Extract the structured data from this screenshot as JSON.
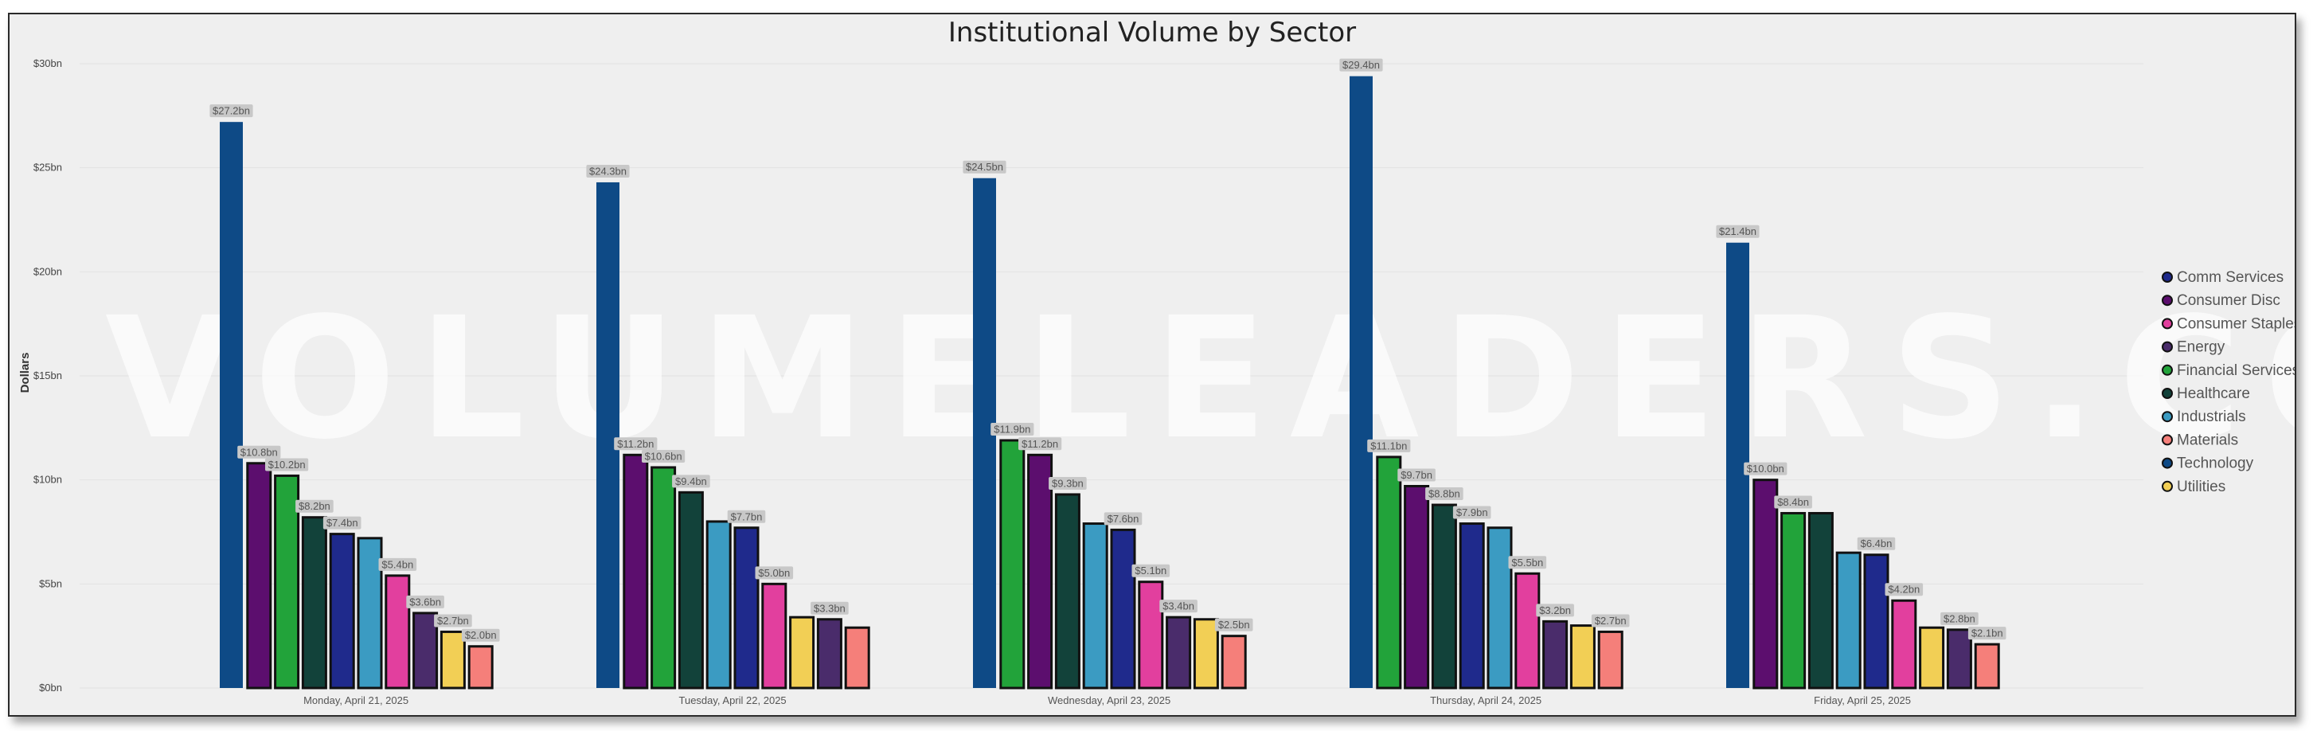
{
  "chart_data": {
    "type": "bar",
    "title": "Institutional Volume by Sector",
    "ylabel": "Dollars",
    "xlabel": "",
    "ylim": [
      0,
      30
    ],
    "yticks": [
      "$0bn",
      "$5bn",
      "$10bn",
      "$15bn",
      "$20bn",
      "$25bn",
      "$30bn"
    ],
    "grid": true,
    "legend_position": "right",
    "watermark": "VOLUMELEADERS.COM",
    "legend": [
      {
        "name": "Comm Services",
        "color": "#1f2a8c"
      },
      {
        "name": "Consumer Disc",
        "color": "#5c0e6e"
      },
      {
        "name": "Consumer Staples",
        "color": "#e23f9e"
      },
      {
        "name": "Energy",
        "color": "#4a2c6b"
      },
      {
        "name": "Financial Services",
        "color": "#22a33a"
      },
      {
        "name": "Healthcare",
        "color": "#12423a"
      },
      {
        "name": "Industrials",
        "color": "#3b9bc2"
      },
      {
        "name": "Materials",
        "color": "#f57f7a"
      },
      {
        "name": "Technology",
        "color": "#0e4a86"
      },
      {
        "name": "Utilities",
        "color": "#f2cf55"
      }
    ],
    "groups": [
      {
        "category": "Monday, April 21, 2025",
        "bars": [
          {
            "sector": "Technology",
            "value": 27.2,
            "label": "$27.2bn"
          },
          {
            "sector": "Consumer Disc",
            "value": 10.8,
            "label": "$10.8bn"
          },
          {
            "sector": "Financial Services",
            "value": 10.2,
            "label": "$10.2bn"
          },
          {
            "sector": "Healthcare",
            "value": 8.2,
            "label": "$8.2bn"
          },
          {
            "sector": "Comm Services",
            "value": 7.4,
            "label": "$7.4bn"
          },
          {
            "sector": "Industrials",
            "value": 7.2,
            "label": ""
          },
          {
            "sector": "Consumer Staples",
            "value": 5.4,
            "label": "$5.4bn"
          },
          {
            "sector": "Energy",
            "value": 3.6,
            "label": "$3.6bn"
          },
          {
            "sector": "Utilities",
            "value": 2.7,
            "label": "$2.7bn"
          },
          {
            "sector": "Materials",
            "value": 2.0,
            "label": "$2.0bn"
          }
        ]
      },
      {
        "category": "Tuesday, April 22, 2025",
        "bars": [
          {
            "sector": "Technology",
            "value": 24.3,
            "label": "$24.3bn"
          },
          {
            "sector": "Consumer Disc",
            "value": 11.2,
            "label": "$11.2bn"
          },
          {
            "sector": "Financial Services",
            "value": 10.6,
            "label": "$10.6bn"
          },
          {
            "sector": "Healthcare",
            "value": 9.4,
            "label": "$9.4bn"
          },
          {
            "sector": "Industrials",
            "value": 8.0,
            "label": ""
          },
          {
            "sector": "Comm Services",
            "value": 7.7,
            "label": "$7.7bn"
          },
          {
            "sector": "Consumer Staples",
            "value": 5.0,
            "label": "$5.0bn"
          },
          {
            "sector": "Utilities",
            "value": 3.4,
            "label": ""
          },
          {
            "sector": "Energy",
            "value": 3.3,
            "label": "$3.3bn"
          },
          {
            "sector": "Materials",
            "value": 2.9,
            "label": ""
          }
        ]
      },
      {
        "category": "Wednesday, April 23, 2025",
        "bars": [
          {
            "sector": "Technology",
            "value": 24.5,
            "label": "$24.5bn"
          },
          {
            "sector": "Financial Services",
            "value": 11.9,
            "label": "$11.9bn"
          },
          {
            "sector": "Consumer Disc",
            "value": 11.2,
            "label": "$11.2bn"
          },
          {
            "sector": "Healthcare",
            "value": 9.3,
            "label": "$9.3bn"
          },
          {
            "sector": "Industrials",
            "value": 7.9,
            "label": ""
          },
          {
            "sector": "Comm Services",
            "value": 7.6,
            "label": "$7.6bn"
          },
          {
            "sector": "Consumer Staples",
            "value": 5.1,
            "label": "$5.1bn"
          },
          {
            "sector": "Energy",
            "value": 3.4,
            "label": "$3.4bn"
          },
          {
            "sector": "Utilities",
            "value": 3.3,
            "label": ""
          },
          {
            "sector": "Materials",
            "value": 2.5,
            "label": "$2.5bn"
          }
        ]
      },
      {
        "category": "Thursday, April 24, 2025",
        "bars": [
          {
            "sector": "Technology",
            "value": 29.4,
            "label": "$29.4bn"
          },
          {
            "sector": "Financial Services",
            "value": 11.1,
            "label": "$11.1bn"
          },
          {
            "sector": "Consumer Disc",
            "value": 9.7,
            "label": "$9.7bn"
          },
          {
            "sector": "Healthcare",
            "value": 8.8,
            "label": "$8.8bn"
          },
          {
            "sector": "Comm Services",
            "value": 7.9,
            "label": "$7.9bn"
          },
          {
            "sector": "Industrials",
            "value": 7.7,
            "label": ""
          },
          {
            "sector": "Consumer Staples",
            "value": 5.5,
            "label": "$5.5bn"
          },
          {
            "sector": "Energy",
            "value": 3.2,
            "label": "$3.2bn"
          },
          {
            "sector": "Utilities",
            "value": 3.0,
            "label": ""
          },
          {
            "sector": "Materials",
            "value": 2.7,
            "label": "$2.7bn"
          }
        ]
      },
      {
        "category": "Friday, April 25, 2025",
        "bars": [
          {
            "sector": "Technology",
            "value": 21.4,
            "label": "$21.4bn"
          },
          {
            "sector": "Consumer Disc",
            "value": 10.0,
            "label": "$10.0bn"
          },
          {
            "sector": "Financial Services",
            "value": 8.4,
            "label": "$8.4bn"
          },
          {
            "sector": "Healthcare",
            "value": 8.4,
            "label": ""
          },
          {
            "sector": "Industrials",
            "value": 6.5,
            "label": ""
          },
          {
            "sector": "Comm Services",
            "value": 6.4,
            "label": "$6.4bn"
          },
          {
            "sector": "Consumer Staples",
            "value": 4.2,
            "label": "$4.2bn"
          },
          {
            "sector": "Utilities",
            "value": 2.9,
            "label": ""
          },
          {
            "sector": "Energy",
            "value": 2.8,
            "label": "$2.8bn"
          },
          {
            "sector": "Materials",
            "value": 2.1,
            "label": "$2.1bn"
          }
        ]
      }
    ]
  }
}
